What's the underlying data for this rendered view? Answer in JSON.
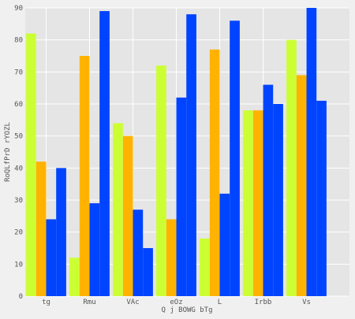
{
  "chart_data": {
    "type": "bar",
    "title": "",
    "xlabel": "Q j BOWG bTg",
    "ylabel": "RoQLfPrD rYOZL",
    "categories": [
      "tg",
      "Rmu",
      "VAc",
      "eOz",
      "L",
      "Irbb",
      "Vs"
    ],
    "series": [
      {
        "color": "#ccff33",
        "values": [
          82,
          12,
          54,
          72,
          18,
          58,
          80
        ]
      },
      {
        "color": "#ffb300",
        "values": [
          42,
          75,
          50,
          24,
          77,
          58,
          69
        ]
      },
      {
        "color": "#0044ff",
        "values": [
          24,
          29,
          27,
          62,
          32,
          66,
          90
        ]
      },
      {
        "color": "#0044ff",
        "values": [
          40,
          89,
          15,
          88,
          86,
          60,
          61
        ]
      }
    ],
    "ylim": [
      0,
      90
    ],
    "yticks": [
      "0",
      "10",
      "20",
      "30",
      "40",
      "50",
      "60",
      "70",
      "80",
      "90"
    ],
    "grid": true,
    "plot_background": "#e5e5e5",
    "figure_background": "#f0f0f0"
  }
}
